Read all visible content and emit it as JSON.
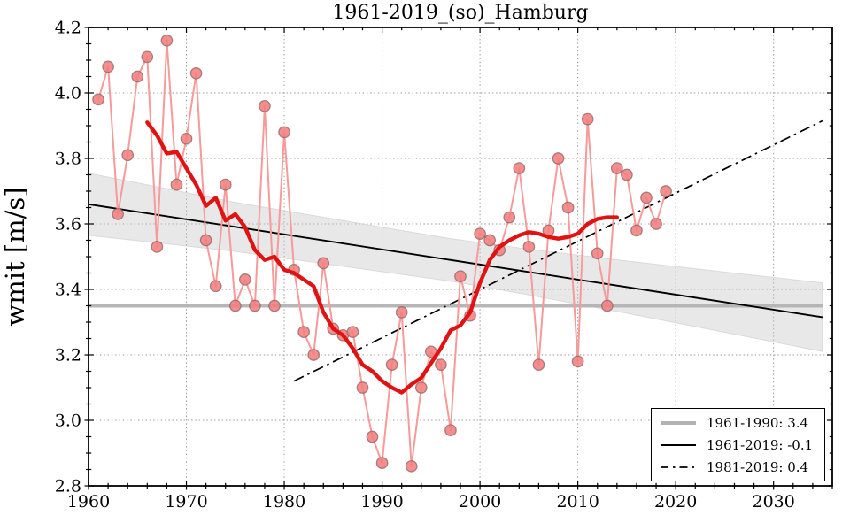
{
  "title": "1961-2019_(so)_Hamburg",
  "axes": {
    "ylabel": "wmit [m/s]",
    "xlim": [
      1960,
      2036
    ],
    "ylim": [
      2.8,
      4.2
    ],
    "x_major_ticks": [
      1960,
      1970,
      1980,
      1990,
      2000,
      2010,
      2020,
      2030
    ],
    "x_minor_step": 2,
    "y_major_ticks": [
      2.8,
      3.0,
      3.2,
      3.4,
      3.6,
      3.8,
      4.0,
      4.2
    ],
    "y_minor_step": 0.05,
    "grid": "dotted"
  },
  "legend": {
    "position": "lower right",
    "items": [
      {
        "label": "1961-1990: 3.4",
        "line": "thick-gray-solid"
      },
      {
        "label": "1961-2019: -0.1",
        "line": "black-solid"
      },
      {
        "label": "1981-2019: 0.4",
        "line": "black-dashdot"
      }
    ]
  },
  "chart_data": {
    "type": "line",
    "title": "1961-2019_(so)_Hamburg",
    "xlabel": "",
    "ylabel": "wmit [m/s]",
    "xlim": [
      1960,
      2036
    ],
    "ylim": [
      2.8,
      4.2
    ],
    "legend_position": "lower right",
    "series": [
      {
        "name": "annual_wind_speed",
        "style": "light-red line with circle markers",
        "x": [
          1961,
          1962,
          1963,
          1964,
          1965,
          1966,
          1967,
          1968,
          1969,
          1970,
          1971,
          1972,
          1973,
          1974,
          1975,
          1976,
          1977,
          1978,
          1979,
          1980,
          1981,
          1982,
          1983,
          1984,
          1985,
          1986,
          1987,
          1988,
          1989,
          1990,
          1991,
          1992,
          1993,
          1994,
          1995,
          1996,
          1997,
          1998,
          1999,
          2000,
          2001,
          2002,
          2003,
          2004,
          2005,
          2006,
          2007,
          2008,
          2009,
          2010,
          2011,
          2012,
          2013,
          2014,
          2015,
          2016,
          2017,
          2018,
          2019
        ],
        "values": [
          3.98,
          4.08,
          3.63,
          3.81,
          4.05,
          4.11,
          3.53,
          4.16,
          3.72,
          3.86,
          4.06,
          3.55,
          3.41,
          3.72,
          3.35,
          3.43,
          3.35,
          3.96,
          3.35,
          3.88,
          3.46,
          3.27,
          3.2,
          3.48,
          3.28,
          3.26,
          3.27,
          3.1,
          2.95,
          2.87,
          3.17,
          3.33,
          2.86,
          3.1,
          3.21,
          3.17,
          2.97,
          3.44,
          3.32,
          3.57,
          3.55,
          3.52,
          3.62,
          3.77,
          3.53,
          3.17,
          3.58,
          3.8,
          3.65,
          3.18,
          3.92,
          3.51,
          3.35,
          3.77,
          3.75,
          3.58,
          3.68,
          3.6,
          3.7
        ]
      },
      {
        "name": "smoothed_11yr_running_mean",
        "style": "thick red line",
        "x": [
          1966,
          1967,
          1968,
          1969,
          1970,
          1971,
          1972,
          1973,
          1974,
          1975,
          1976,
          1977,
          1978,
          1979,
          1980,
          1981,
          1982,
          1983,
          1984,
          1985,
          1986,
          1987,
          1988,
          1989,
          1990,
          1991,
          1992,
          1993,
          1994,
          1995,
          1996,
          1997,
          1998,
          1999,
          2000,
          2001,
          2002,
          2003,
          2004,
          2005,
          2006,
          2007,
          2008,
          2009,
          2010,
          2011,
          2012,
          2013,
          2014
        ],
        "values": [
          3.91,
          3.87,
          3.815,
          3.82,
          3.77,
          3.72,
          3.655,
          3.68,
          3.61,
          3.63,
          3.59,
          3.52,
          3.49,
          3.5,
          3.46,
          3.45,
          3.43,
          3.41,
          3.33,
          3.28,
          3.26,
          3.22,
          3.17,
          3.15,
          3.12,
          3.1,
          3.085,
          3.11,
          3.13,
          3.175,
          3.22,
          3.275,
          3.29,
          3.33,
          3.42,
          3.49,
          3.53,
          3.55,
          3.565,
          3.575,
          3.57,
          3.56,
          3.555,
          3.56,
          3.57,
          3.6,
          3.615,
          3.62,
          3.62
        ]
      },
      {
        "name": "mean_1961_1990",
        "label": "1961-1990: 3.4",
        "style": "thick gray horizontal line",
        "x": [
          1960,
          2035
        ],
        "values": [
          3.35,
          3.35
        ]
      },
      {
        "name": "trend_1961_2019",
        "label": "1961-2019: -0.1",
        "style": "black solid line",
        "x": [
          1960,
          2035
        ],
        "values": [
          3.66,
          3.315
        ]
      },
      {
        "name": "trend_1981_2019",
        "label": "1981-2019: 0.4",
        "style": "black dash-dot line",
        "x": [
          1981,
          2035
        ],
        "values": [
          3.12,
          3.915
        ]
      }
    ],
    "confidence_band": {
      "x": [
        1960,
        1975,
        1990,
        1997,
        2005,
        2015,
        2025,
        2035
      ],
      "upper": [
        3.755,
        3.666,
        3.59,
        3.555,
        3.523,
        3.487,
        3.453,
        3.42
      ],
      "lower": [
        3.565,
        3.516,
        3.454,
        3.425,
        3.383,
        3.327,
        3.269,
        3.21
      ]
    }
  },
  "colors": {
    "annual_line": "#f79a9a",
    "marker_fill": "#f57e7e",
    "marker_edge": "#8a6565",
    "smoothed_line": "#e01212",
    "mean_line": "#b3b3b3",
    "trend_line": "#000000",
    "dashdot_line": "#000000",
    "band_fill": "#c9c9c9",
    "grid": "#999999",
    "spine": "#000000",
    "background": "#ffffff"
  }
}
